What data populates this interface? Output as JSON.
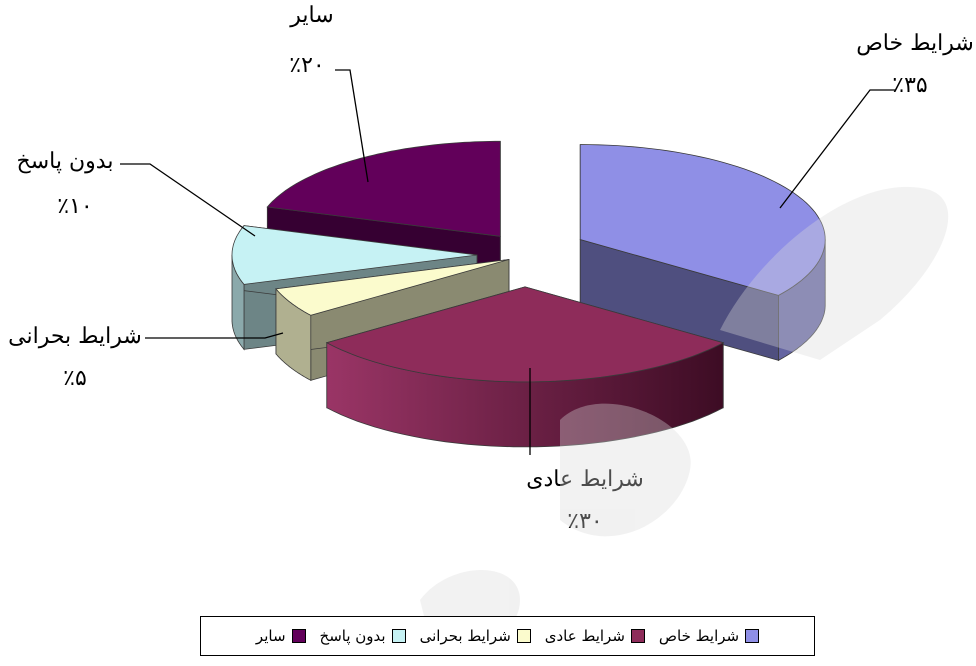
{
  "chart_data": {
    "type": "pie",
    "style": "3d-exploded",
    "title": "",
    "slices": [
      {
        "name": "شرایط خاص",
        "percent": 35,
        "label": "٪۳۵",
        "color": "#8f8fe6"
      },
      {
        "name": "شرایط عادی",
        "percent": 30,
        "label": "٪۳۰",
        "color": "#8e2c5a"
      },
      {
        "name": "شرایط بحرانی",
        "percent": 5,
        "label": "٪۵",
        "color": "#fbfbcd"
      },
      {
        "name": "بدون پاسخ",
        "percent": 10,
        "label": "٪۱۰",
        "color": "#c6f2f4"
      },
      {
        "name": "سایر",
        "percent": 20,
        "label": "٪۲۰",
        "color": "#62005a"
      }
    ],
    "legend": {
      "placement": "bottom",
      "items": [
        {
          "label": "شرایط خاص",
          "color": "#8f8fe6"
        },
        {
          "label": "شرایط عادی",
          "color": "#8e2c5a"
        },
        {
          "label": "شرایط بحرانی",
          "color": "#fbfbcd"
        },
        {
          "label": "بدون پاسخ",
          "color": "#c6f2f4"
        },
        {
          "label": "سایر",
          "color": "#62005a"
        }
      ]
    }
  }
}
